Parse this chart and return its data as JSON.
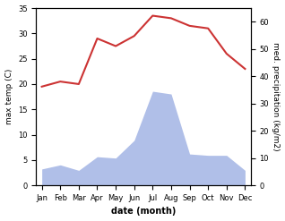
{
  "months": [
    "Jan",
    "Feb",
    "Mar",
    "Apr",
    "May",
    "Jun",
    "Jul",
    "Aug",
    "Sep",
    "Oct",
    "Nov",
    "Dec"
  ],
  "temperature": [
    19.5,
    20.5,
    20.0,
    29.0,
    27.5,
    29.5,
    33.5,
    33.0,
    31.5,
    31.0,
    26.0,
    23.0
  ],
  "precipitation": [
    6.0,
    7.5,
    5.5,
    10.5,
    10.0,
    16.5,
    34.5,
    33.5,
    11.5,
    11.0,
    11.0,
    5.5
  ],
  "temp_color": "#cc3333",
  "precip_fill_color": "#b0bfe8",
  "temp_ylim": [
    0,
    35
  ],
  "precip_ylim": [
    0,
    65
  ],
  "left_yticks": [
    0,
    5,
    10,
    15,
    20,
    25,
    30,
    35
  ],
  "right_yticks": [
    0,
    10,
    20,
    30,
    40,
    50,
    60
  ],
  "ylabel_left": "max temp (C)",
  "ylabel_right": "med. precipitation (kg/m2)",
  "xlabel": "date (month)",
  "background_color": "#ffffff"
}
